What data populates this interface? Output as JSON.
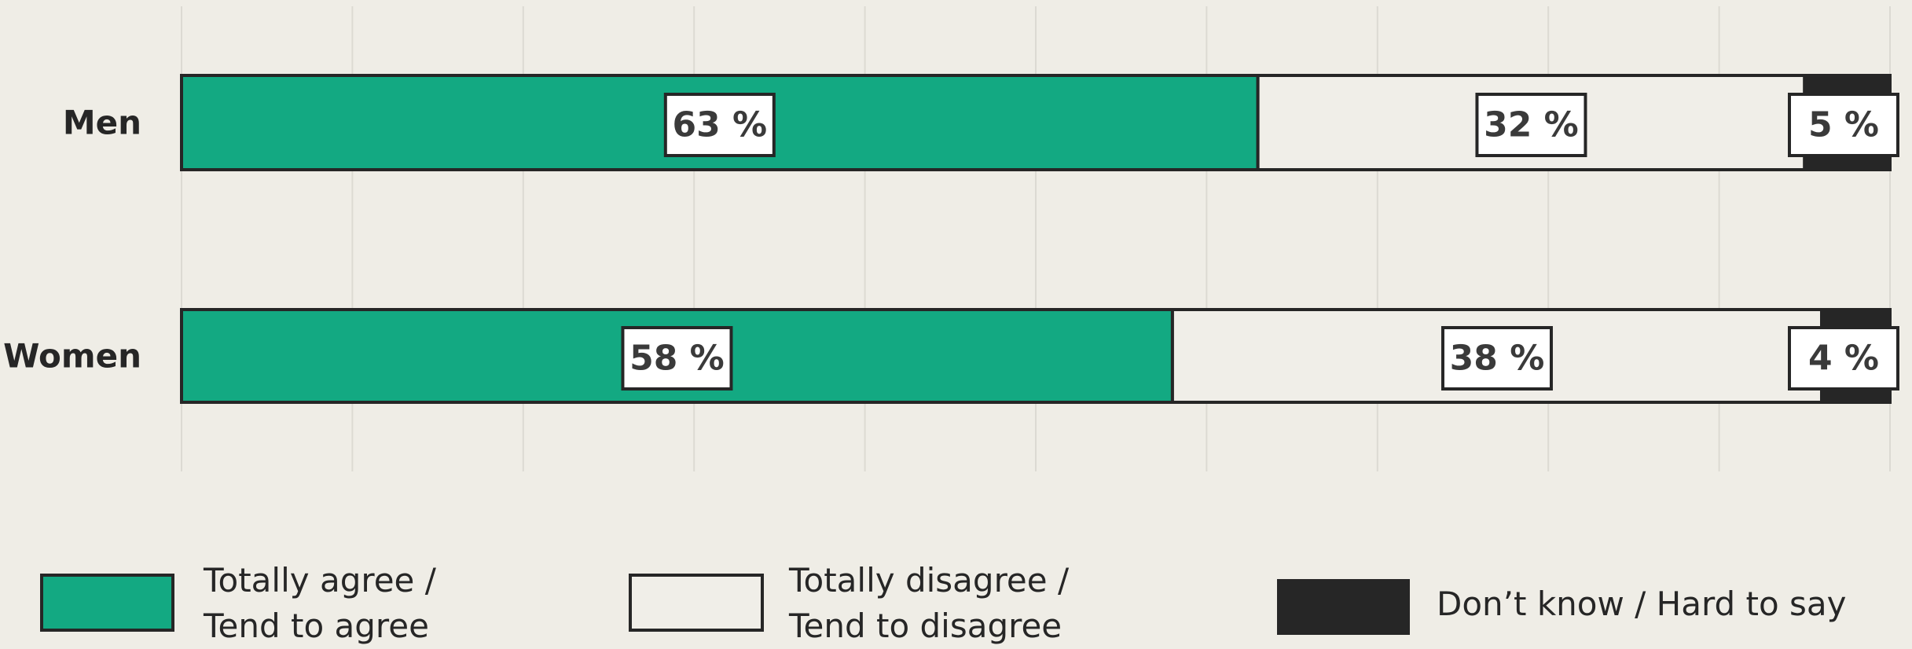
{
  "chart_data": {
    "type": "bar",
    "orientation": "horizontal",
    "stacked": true,
    "categories": [
      "Men",
      "Women"
    ],
    "series": [
      {
        "name": "Totally agree / Tend to agree",
        "color": "#13a982",
        "values": [
          63,
          58
        ],
        "value_labels": [
          "63 %",
          "58 %"
        ]
      },
      {
        "name": "Totally disagree / Tend to disagree",
        "color": "#f0eee8",
        "values": [
          32,
          38
        ],
        "value_labels": [
          "32 %",
          "38 %"
        ]
      },
      {
        "name": "Don’t know / Hard to say",
        "color": "#262626",
        "values": [
          5,
          4
        ],
        "value_labels": [
          "5 %",
          "4 %"
        ]
      }
    ],
    "xlim": [
      0,
      100
    ],
    "xticks": [
      0,
      10,
      20,
      30,
      40,
      50,
      60,
      70,
      80,
      90,
      100
    ],
    "grid": true
  }
}
